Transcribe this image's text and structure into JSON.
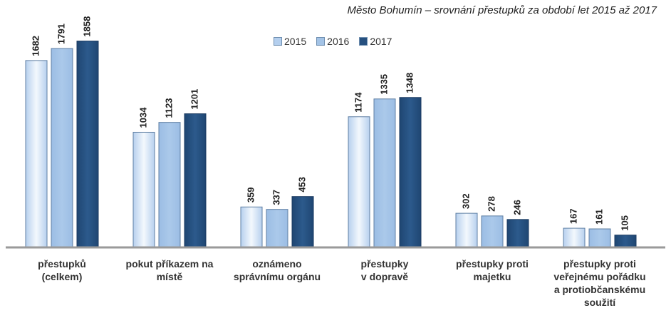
{
  "chart_data": {
    "type": "bar",
    "title": "Město Bohumín – srovnání přestupků za období let 2015 až 2017",
    "categories": [
      [
        "přestupků",
        "(celkem)"
      ],
      [
        "pokut příkazem na",
        "místě"
      ],
      [
        "oznámeno",
        "správnímu orgánu"
      ],
      [
        "přestupky",
        "v dopravě"
      ],
      [
        "přestupky proti",
        "majetku"
      ],
      [
        "přestupky proti",
        "veřejnému pořádku",
        "a protiobčanskému",
        "soužití"
      ]
    ],
    "series": [
      {
        "name": "2015",
        "values": [
          1682,
          1034,
          359,
          1174,
          302,
          167
        ]
      },
      {
        "name": "2016",
        "values": [
          1791,
          1123,
          337,
          1335,
          278,
          161
        ]
      },
      {
        "name": "2017",
        "values": [
          1858,
          1201,
          453,
          1348,
          246,
          105
        ]
      }
    ],
    "ylim": [
      0,
      2100
    ],
    "legend_position": "top-center",
    "grid": false
  },
  "colors": {
    "2015": "#dbe8f6",
    "2016": "#a3c3e6",
    "2017": "#26507f",
    "axis": "#9a9a9a"
  }
}
